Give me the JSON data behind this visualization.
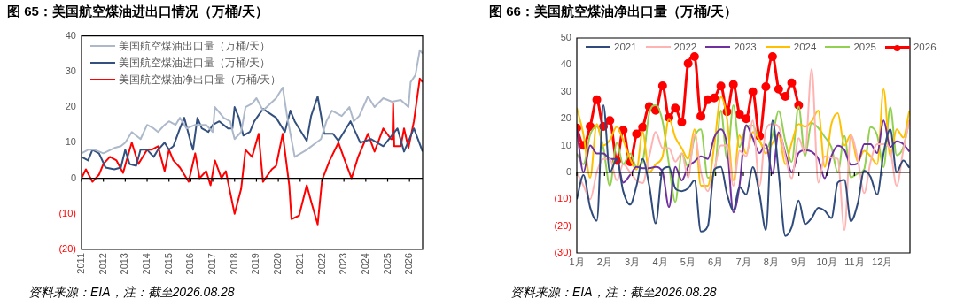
{
  "chart_data": [
    {
      "type": "line",
      "title": "图 65：美国航空煤油进出口情况（万桶/天）",
      "legend": "top left",
      "xlim": [
        2011,
        2026.6
      ],
      "xticks": [
        2011,
        2012,
        2013,
        2014,
        2015,
        2016,
        2017,
        2018,
        2019,
        2020,
        2021,
        2022,
        2023,
        2024,
        2025,
        2026
      ],
      "ylim": [
        -20,
        40
      ],
      "yticks": [
        {
          "value": -20,
          "label": "(20)"
        },
        {
          "value": -10,
          "label": "(10)"
        },
        0,
        10,
        20,
        30,
        40
      ],
      "annotations": [
        "资料来源：EIA，注：截至2026.08.28"
      ],
      "series": [
        {
          "name": "美国航空煤油出口量（万桶/天）",
          "color": "#adb9ca",
          "x": [
            2011,
            2011.3,
            2011.6,
            2012,
            2012.5,
            2012.8,
            2013,
            2013.3,
            2013.7,
            2014,
            2014.3,
            2014.5,
            2014.8,
            2015,
            2015.3,
            2015.5,
            2015.8,
            2016.2,
            2016.7,
            2017,
            2017.1,
            2017.5,
            2017.8,
            2018,
            2018.3,
            2018.5,
            2018.8,
            2019,
            2019.3,
            2019.9,
            2020.2,
            2020.4,
            2020.75,
            2021.3,
            2021.95,
            2022.2,
            2022.45,
            2022.9,
            2023.25,
            2023.45,
            2023.7,
            2024.1,
            2024.4,
            2024.8,
            2025.2,
            2025.6,
            2025.95,
            2026.05,
            2026.27,
            2026.47,
            2026.6
          ],
          "values": [
            7,
            8,
            8,
            7,
            8.5,
            9,
            10,
            13,
            11,
            15,
            14,
            13,
            15,
            16,
            15,
            17,
            14,
            15,
            15,
            13,
            20,
            17,
            16,
            11,
            13,
            20,
            21,
            22.5,
            19,
            22.5,
            25.5,
            17.5,
            6,
            8,
            11,
            16,
            19,
            17.5,
            20,
            16,
            17.5,
            23,
            20,
            22.5,
            21.5,
            22,
            20,
            27,
            29,
            36,
            35
          ]
        },
        {
          "name": "美国航空煤油进口量（万桶/天）",
          "color": "#33507e",
          "x": [
            2011,
            2011.3,
            2011.5,
            2011.8,
            2012.1,
            2012.5,
            2012.8,
            2013,
            2013.2,
            2013.5,
            2013.7,
            2014,
            2014.3,
            2014.5,
            2014.8,
            2015,
            2015.2,
            2015.5,
            2015.7,
            2016,
            2016.1,
            2016.3,
            2016.5,
            2016.8,
            2017,
            2017.3,
            2017.7,
            2017.9,
            2018,
            2018.2,
            2018.4,
            2018.7,
            2018.9,
            2019.3,
            2019.9,
            2020.3,
            2020.55,
            2020.75,
            2021.3,
            2021.5,
            2021.8,
            2022.1,
            2022.5,
            2022.75,
            2023.3,
            2023.75,
            2024.25,
            2024.8,
            2025.45,
            2025.75,
            2026.2,
            2026.6
          ],
          "values": [
            6,
            5,
            8,
            7,
            3,
            2.5,
            3,
            8,
            4,
            3.5,
            8,
            8,
            6,
            8,
            10,
            8,
            9,
            14,
            17,
            10,
            8,
            17,
            14,
            13,
            15,
            16,
            14,
            14,
            20,
            17,
            12,
            13,
            16,
            19.5,
            17,
            13,
            19,
            16,
            10.5,
            17.5,
            23,
            12.5,
            12.5,
            10.5,
            16,
            10,
            11,
            9,
            14,
            7.5,
            14,
            7.5
          ]
        },
        {
          "name": "美国航空煤油净出口量（万桶/天）",
          "color": "#ff0000",
          "x": [
            2011,
            2011.2,
            2011.5,
            2011.8,
            2012,
            2012.3,
            2012.6,
            2012.9,
            2013.2,
            2013.3,
            2013.6,
            2014,
            2014.2,
            2014.5,
            2014.8,
            2015,
            2015.2,
            2015.5,
            2015.9,
            2016.2,
            2016.4,
            2016.7,
            2016.9,
            2017.1,
            2017.4,
            2017.6,
            2017.8,
            2018,
            2018.3,
            2018.5,
            2018.8,
            2019.1,
            2019.3,
            2019.7,
            2019.9,
            2020.2,
            2020.5,
            2020.6,
            2020.95,
            2021.3,
            2021.5,
            2021.8,
            2022,
            2022.35,
            2022.75,
            2023.1,
            2023.35,
            2023.65,
            2024.1,
            2024.4,
            2024.8,
            2025.15,
            2025.22,
            2025.25,
            2025.3,
            2025.6,
            2025.75,
            2025.95,
            2026.2,
            2026.47,
            2026.6
          ],
          "values": [
            0,
            2.5,
            -1,
            1,
            4,
            6,
            5,
            1.5,
            8,
            10,
            4,
            8,
            8,
            9,
            2,
            8,
            5,
            3,
            -1,
            7,
            0,
            2,
            -2,
            5,
            0,
            2,
            -4,
            -10,
            -3,
            8,
            6,
            12.5,
            -1,
            2.5,
            3.5,
            12.5,
            -2,
            -11.5,
            -10.5,
            -2,
            -6.5,
            -13,
            -0.5,
            5,
            10,
            4,
            0,
            6,
            12.5,
            7.5,
            14,
            11,
            11,
            21,
            9,
            9,
            14,
            8.5,
            16,
            28,
            27
          ]
        }
      ]
    },
    {
      "type": "line",
      "title": "图 66：美国航空煤油净出口量（万桶/天）",
      "legend": "top",
      "xlim": [
        1,
        13
      ],
      "xticks": [
        {
          "value": 1,
          "label": "1月"
        },
        {
          "value": 2,
          "label": "2月"
        },
        {
          "value": 3,
          "label": "3月"
        },
        {
          "value": 4,
          "label": "4月"
        },
        {
          "value": 5,
          "label": "5月"
        },
        {
          "value": 6,
          "label": "6月"
        },
        {
          "value": 7,
          "label": "7月"
        },
        {
          "value": 8,
          "label": "8月"
        },
        {
          "value": 9,
          "label": "9月"
        },
        {
          "value": 10,
          "label": "10月"
        },
        {
          "value": 11,
          "label": "11月"
        },
        {
          "value": 12,
          "label": "12月"
        }
      ],
      "ylim": [
        -30,
        50
      ],
      "yticks": [
        {
          "value": -30,
          "label": "(30)"
        },
        {
          "value": -20,
          "label": "(20)"
        },
        {
          "value": -10,
          "label": "(10)"
        },
        0,
        10,
        20,
        30,
        40,
        50
      ],
      "annotations": [
        "资料来源：EIA，注：截至2026.08.28"
      ],
      "x": [
        1.0,
        1.24,
        1.48,
        1.72,
        1.96,
        2.19,
        2.44,
        2.67,
        2.92,
        3.15,
        3.37,
        3.61,
        3.84,
        4.09,
        4.32,
        4.55,
        4.78,
        5.01,
        5.24,
        5.47,
        5.72,
        5.95,
        6.19,
        6.41,
        6.64,
        6.86,
        7.1,
        7.34,
        7.58,
        7.81,
        8.05,
        8.27,
        8.51,
        8.74,
        8.99,
        9.22,
        9.46,
        9.7,
        9.93,
        10.17,
        10.4,
        10.64,
        10.87,
        11.12,
        11.35,
        11.58,
        11.82,
        12.05,
        12.29,
        12.52,
        12.76,
        12.98
      ],
      "series": [
        {
          "name": "2021",
          "color": "#2f4b7c",
          "values": [
            -10,
            -1,
            -13,
            -18,
            25,
            0,
            5,
            -7,
            -12,
            -5,
            5,
            -5,
            -19,
            1,
            2,
            -6,
            -7,
            -6,
            -3,
            -22,
            -20,
            1,
            2,
            -8,
            -14,
            -5.5,
            -8.3,
            1.9,
            -8,
            -21.5,
            19.3,
            0,
            -23.7,
            -20.4,
            -10.5,
            -19.3,
            -17,
            -13.2,
            -14.3,
            -17,
            -3.8,
            -2.8,
            -18.2,
            -11.6,
            0.6,
            -1.7,
            -8.3,
            7.2,
            16,
            0,
            4.4,
            1.7
          ]
        },
        {
          "name": "2022",
          "color": "#ffb3b3",
          "values": [
            0,
            -5,
            -10,
            0,
            5,
            5,
            -3,
            3,
            0,
            -3,
            -4,
            6,
            15,
            9,
            9,
            4,
            7,
            -2,
            14,
            0,
            -7,
            1,
            10,
            10,
            -5,
            8,
            6,
            19.3,
            -5,
            16,
            18,
            17,
            6,
            -2.2,
            12.7,
            7.2,
            38.5,
            -3.8,
            6,
            5.5,
            5,
            -21.5,
            13.8,
            5,
            -7.7,
            3.9,
            10.5,
            10.5,
            8.3,
            -5,
            8.3,
            19.3
          ]
        },
        {
          "name": "2023",
          "color": "#7030a0",
          "values": [
            16,
            0,
            10,
            7,
            7,
            5,
            5,
            -3.8,
            -1,
            2,
            1.5,
            1.5,
            2,
            0,
            -12.9,
            2,
            -3,
            2,
            4,
            6,
            5,
            13,
            16,
            10,
            -14.9,
            -5,
            17.6,
            12.7,
            7.2,
            10.5,
            -0.5,
            14.9,
            7.2,
            0,
            7.2,
            8.3,
            7.7,
            5,
            -2.2,
            6,
            9.9,
            8.3,
            2.8,
            3.3,
            10.5,
            10.5,
            7.2,
            19.3,
            9.4,
            11.6,
            10.5,
            7.7
          ]
        },
        {
          "name": "2024",
          "color": "#ffc000",
          "values": [
            24,
            14,
            -2,
            18,
            10,
            12,
            17,
            12,
            5,
            1,
            15,
            0,
            3,
            6,
            20,
            13,
            9,
            5,
            16,
            -5,
            -5,
            10,
            28,
            20,
            -3,
            13.8,
            7,
            15,
            12,
            7,
            11,
            14,
            3,
            11,
            18,
            17,
            19,
            23,
            2,
            18,
            22,
            10,
            14,
            4,
            8,
            6,
            3,
            31,
            6,
            16,
            13,
            23
          ]
        },
        {
          "name": "2025",
          "color": "#92d050",
          "values": [
            7,
            3,
            14,
            17,
            9,
            -5,
            11,
            3,
            7,
            2,
            4,
            22,
            25,
            19,
            3,
            -11,
            7,
            2,
            13,
            16,
            -2,
            -1,
            23,
            5,
            25,
            9.4,
            17,
            17.4,
            11.6,
            8.8,
            13.8,
            22.8,
            11.6,
            3.9,
            24.5,
            6,
            18.4,
            16.5,
            13.2,
            9.4,
            0,
            13.5,
            -1.9,
            -0.5,
            1.1,
            16.8,
            13.8,
            1.9,
            24.2,
            6.4,
            9.4,
            19.5
          ]
        },
        {
          "name": "2026",
          "color": "#ff0000",
          "marker": "circle",
          "values": [
            16.5,
            10.1,
            17.1,
            27,
            17.1,
            19.3,
            4.4,
            15.7,
            3.9,
            14.3,
            16.8,
            24.5,
            23.1,
            32.2,
            20.4,
            23.9,
            18.7,
            40.5,
            43.1,
            20.9,
            27,
            27.7,
            32.1,
            22.6,
            32.7,
            21.7,
            20,
            30,
            13.5,
            31.9,
            43.1,
            31,
            28.3,
            33.3,
            25,
            null,
            null,
            null,
            null,
            null,
            null,
            null,
            null,
            null,
            null,
            null,
            null,
            null,
            null,
            null,
            null,
            null
          ]
        }
      ]
    }
  ]
}
